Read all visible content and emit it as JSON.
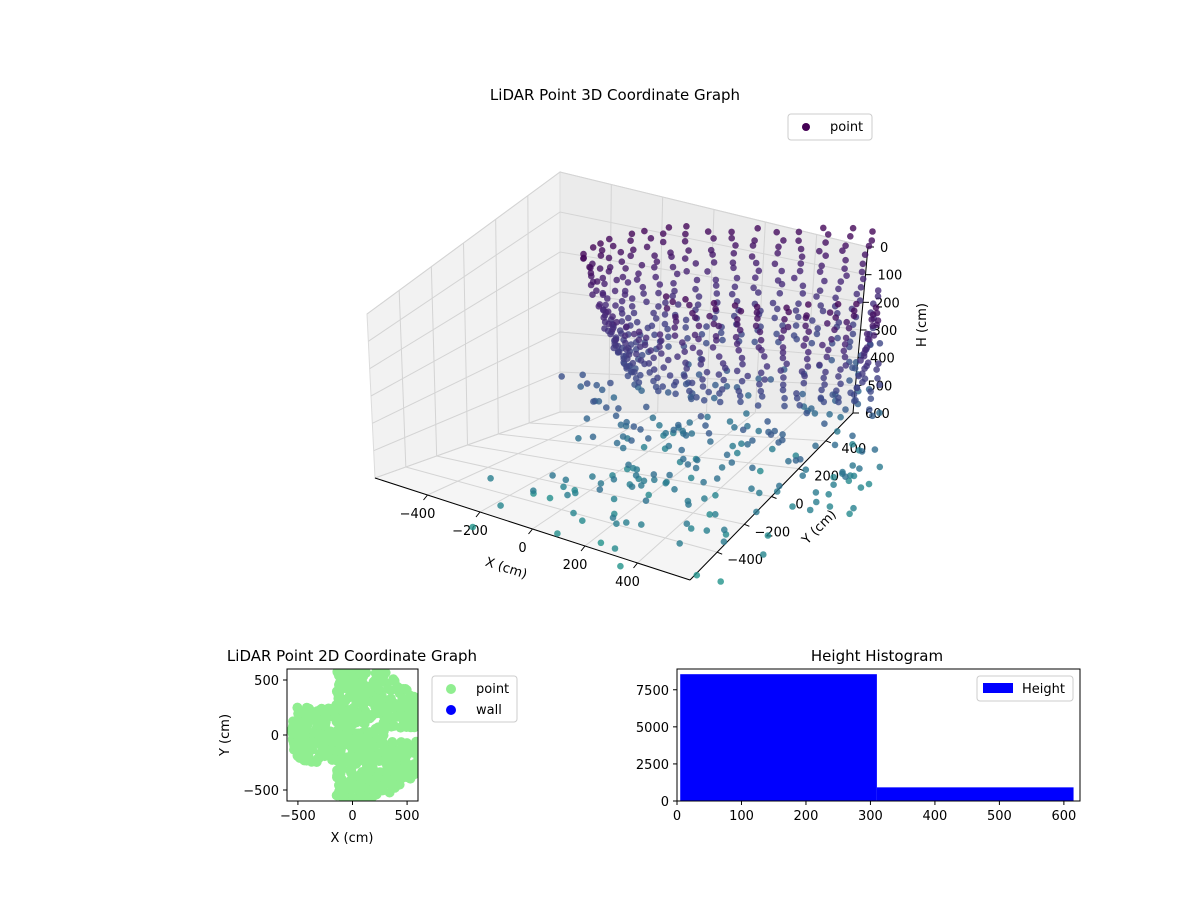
{
  "chart_data": [
    {
      "type": "scatter",
      "title": "LiDAR Point 3D Coordinate Graph",
      "xlabel": "X (cm)",
      "ylabel": "Y (cm)",
      "zlabel": "H (cm)",
      "xticks": [
        -400,
        -200,
        0,
        200,
        400
      ],
      "yticks": [
        -400,
        -200,
        0,
        200,
        400
      ],
      "zticks": [
        0,
        100,
        200,
        300,
        400,
        500,
        600
      ],
      "xlim": [
        -600,
        600
      ],
      "ylim": [
        -600,
        600
      ],
      "zlim": [
        0,
        600
      ],
      "z_inverted": true,
      "grid": true,
      "colormap": "viridis",
      "legend": {
        "position": "top-right",
        "entries": [
          {
            "name": "point",
            "color": "#440154"
          }
        ]
      }
    },
    {
      "type": "scatter",
      "title": "LiDAR Point 2D Coordinate Graph",
      "xlabel": "X (cm)",
      "ylabel": "Y (cm)",
      "xticks": [
        -500,
        0,
        500
      ],
      "yticks": [
        -500,
        0,
        500
      ],
      "xlim": [
        -600,
        600
      ],
      "ylim": [
        -600,
        600
      ],
      "series": [
        {
          "name": "point",
          "color": "#90ee90"
        },
        {
          "name": "wall",
          "color": "#0000ff"
        }
      ],
      "legend": {
        "position": "outside-right"
      }
    },
    {
      "type": "bar",
      "title": "Height Histogram",
      "xticks": [
        0,
        100,
        200,
        300,
        400,
        500,
        600
      ],
      "yticks": [
        0,
        2500,
        5000,
        7500
      ],
      "xlim": [
        0,
        625
      ],
      "ylim": [
        0,
        8900
      ],
      "bins": [
        {
          "start": 5,
          "end": 310,
          "count": 8550
        },
        {
          "start": 310,
          "end": 615,
          "count": 920
        }
      ],
      "series": [
        {
          "name": "Height",
          "color": "#0000ff"
        }
      ],
      "legend": {
        "position": "top-right"
      }
    }
  ]
}
